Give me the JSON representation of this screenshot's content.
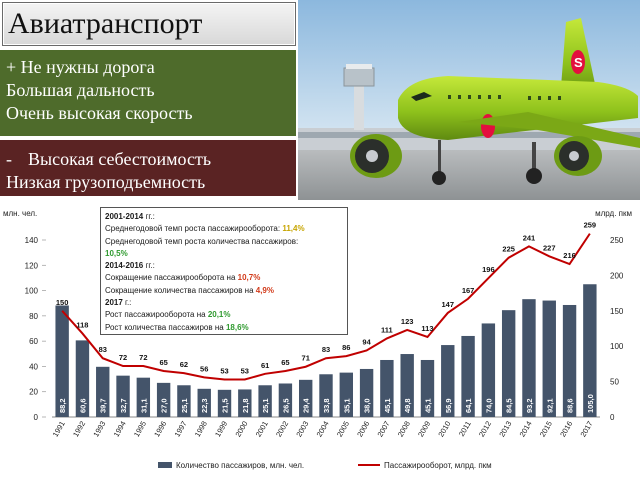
{
  "slide": {
    "title": "Авиатранспорт",
    "pros": [
      "+ Не нужны дорога",
      "Большая дальность",
      "Очень высокая скорость"
    ],
    "cons_bullet": "-",
    "cons": [
      "Высокая себестоимость",
      "Низкая грузоподъемность"
    ]
  },
  "photo": {
    "logo_letter": "S"
  },
  "info": {
    "p1_head": "2001-2014",
    "p1_head_suffix": " гг.:",
    "p1_line1": "Среднегодовой темп роста пассажирооборота: ",
    "p1_line1_val": "11,4%",
    "p1_line2": "Среднегодовой темп роста количества пассажиров:",
    "p1_line2_val": "10,5%",
    "p2_head": "2014-2016",
    "p2_head_suffix": " гг.:",
    "p2_line1": "Сокращение пассажирооборота на ",
    "p2_line1_val": "10,7%",
    "p2_line2": "Сокращение количества пассажиров на ",
    "p2_line2_val": "4,9%",
    "p3_head": "2017",
    "p3_head_suffix": " г.:",
    "p3_line1": "Рост пассажирооборота на ",
    "p3_line1_val": "20,1%",
    "p3_line2": "Рост количества пассажиров на ",
    "p3_line2_val": "18,6%"
  },
  "chart_data": {
    "type": "bar",
    "ylabel_left": "млн. чел.",
    "ylabel_right": "млрд. пкм",
    "ylim_left": [
      0,
      140
    ],
    "ylim_right": [
      0,
      250
    ],
    "yticks_left": [
      "0",
      "20",
      "40",
      "60",
      "80",
      "100",
      "120",
      "140"
    ],
    "yticks_right": [
      "0",
      "50",
      "100",
      "150",
      "200",
      "250"
    ],
    "categories": [
      "1991",
      "1992",
      "1993",
      "1994",
      "1995",
      "1996",
      "1997",
      "1998",
      "1999",
      "2000",
      "2001",
      "2002",
      "2003",
      "2004",
      "2005",
      "2006",
      "2007",
      "2008",
      "2009",
      "2010",
      "2011",
      "2012",
      "2013",
      "2014",
      "2015",
      "2016",
      "2017"
    ],
    "series": [
      {
        "name": "Количество пассажиров, млн. чел.",
        "type": "bar",
        "axis": "left",
        "values": [
          88.2,
          60.6,
          39.7,
          32.7,
          31.1,
          27.0,
          25.1,
          22.3,
          21.5,
          21.8,
          25.1,
          26.5,
          29.4,
          33.8,
          35.1,
          38.0,
          45.1,
          49.8,
          45.1,
          56.9,
          64.1,
          74.0,
          84.5,
          93.2,
          92.1,
          88.6,
          105.0
        ],
        "labels": [
          "88,2",
          "60,6",
          "39,7",
          "32,7",
          "31,1",
          "27,0",
          "25,1",
          "22,3",
          "21,5",
          "21,8",
          "25,1",
          "26,5",
          "29,4",
          "33,8",
          "35,1",
          "38,0",
          "45,1",
          "49,8",
          "45,1",
          "56,9",
          "64,1",
          "74,0",
          "84,5",
          "93,2",
          "92,1",
          "88,6",
          "105,0"
        ],
        "color": "#44546a"
      },
      {
        "name": "Пассажирооборот, млрд. пкм",
        "type": "line",
        "axis": "right",
        "values": [
          150,
          118,
          83,
          72,
          72,
          65,
          62,
          56,
          53,
          53,
          61,
          65,
          71,
          83,
          86,
          94,
          111,
          123,
          113,
          147,
          167,
          196,
          225,
          241,
          227,
          216,
          259
        ],
        "color": "#c00000"
      }
    ],
    "grid": false,
    "legend": "bottom"
  }
}
